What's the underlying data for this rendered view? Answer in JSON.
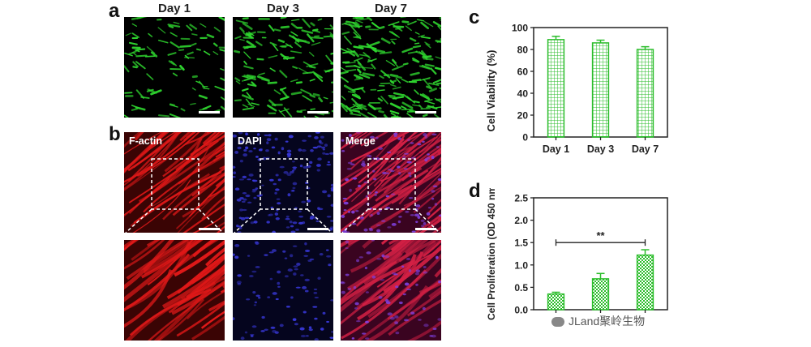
{
  "panel_a": {
    "letter": "a",
    "columns": [
      "Day 1",
      "Day 3",
      "Day 7"
    ],
    "stain_color": "#2fd62f",
    "cell_density": [
      0.3,
      0.55,
      0.95
    ]
  },
  "panel_b": {
    "letter": "b",
    "channels": [
      "F-actin",
      "DAPI",
      "Merge"
    ],
    "channel_colors": [
      "#e01818",
      "#2424c8",
      "#c02070"
    ]
  },
  "chart_data": [
    {
      "panel": "c",
      "type": "bar",
      "categories": [
        "Day 1",
        "Day 3",
        "Day 7"
      ],
      "values": [
        89,
        86,
        80
      ],
      "errors": [
        3,
        2.5,
        2.5
      ],
      "title": "",
      "xlabel": "",
      "ylabel": "Cell Viability (%)",
      "ylim": [
        0,
        100
      ],
      "yticks": [
        "0",
        "20",
        "40",
        "60",
        "80",
        "100"
      ],
      "bar_color": "#2bbd2b",
      "bar_fill": "grid-hatch",
      "grid": false
    },
    {
      "panel": "d",
      "type": "bar",
      "categories": [
        "Day 1",
        "Day 3",
        "Day 7"
      ],
      "values": [
        0.35,
        0.69,
        1.22
      ],
      "errors": [
        0.04,
        0.12,
        0.12
      ],
      "title": "",
      "xlabel": "",
      "ylabel": "Cell Proliferation (OD 450 nm)",
      "ylim": [
        0,
        2.5
      ],
      "yticks": [
        "0.0",
        "0.5",
        "1.0",
        "1.5",
        "2.0",
        "2.5"
      ],
      "significance": {
        "from": "Day 1",
        "to": "Day 7",
        "label": "**"
      },
      "bar_color": "#2bbd2b",
      "bar_fill": "check-hatch",
      "grid": false
    }
  ],
  "watermark": {
    "text": "JLand聚岭生物"
  }
}
